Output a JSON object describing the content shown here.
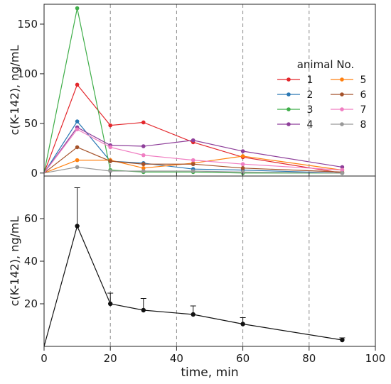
{
  "chart_data": [
    {
      "type": "line",
      "panel": "top",
      "title": "",
      "xlabel": "",
      "ylabel": "c(K-142), ng/mL",
      "xlim": [
        0,
        100
      ],
      "ylim": [
        -3,
        170
      ],
      "yticks": [
        0,
        50,
        100,
        150
      ],
      "vertical_dashed_lines_x": [
        20,
        40,
        60,
        80
      ],
      "legend": {
        "title": "animal No.",
        "placement": "right",
        "columns": 2
      },
      "x": [
        0,
        10,
        20,
        30,
        45,
        60,
        90
      ],
      "series": [
        {
          "name": "1",
          "color": "#e3262b",
          "values": [
            0,
            89,
            48,
            51,
            31,
            16,
            0
          ]
        },
        {
          "name": "2",
          "color": "#2a78b4",
          "values": [
            0,
            52,
            12,
            10,
            4,
            3,
            0
          ]
        },
        {
          "name": "3",
          "color": "#3fae49",
          "values": [
            0,
            166,
            3,
            1,
            1,
            0,
            0
          ]
        },
        {
          "name": "4",
          "color": "#8e3f9a",
          "values": [
            0,
            46,
            28,
            27,
            33,
            22,
            6
          ]
        },
        {
          "name": "5",
          "color": "#ff8010",
          "values": [
            0,
            13,
            13,
            5,
            10,
            17,
            3
          ]
        },
        {
          "name": "6",
          "color": "#a5522a",
          "values": [
            0,
            26,
            12,
            9,
            9,
            5,
            1
          ]
        },
        {
          "name": "7",
          "color": "#f07ec2",
          "values": [
            0,
            44,
            26,
            18,
            13,
            9,
            3
          ]
        },
        {
          "name": "8",
          "color": "#999999",
          "values": [
            0,
            6,
            2,
            2,
            2,
            1,
            0
          ]
        }
      ]
    },
    {
      "type": "line",
      "panel": "bottom",
      "title": "",
      "xlabel": "time, min",
      "ylabel": "c(K-142), ng/mL",
      "xlim": [
        0,
        100
      ],
      "ylim": [
        0,
        80
      ],
      "xticks": [
        0,
        20,
        40,
        60,
        80,
        100
      ],
      "yticks": [
        20,
        40,
        60
      ],
      "vertical_dashed_lines_x": [
        20,
        40,
        60,
        80
      ],
      "series": [
        {
          "name": "",
          "color": "#111111",
          "x": [
            0,
            10,
            20,
            30,
            45,
            60,
            90
          ],
          "values": [
            0,
            56.5,
            20,
            17,
            15,
            10.5,
            3
          ],
          "error_upper": [
            0,
            18,
            5,
            5.5,
            4,
            3,
            1
          ]
        }
      ]
    }
  ]
}
